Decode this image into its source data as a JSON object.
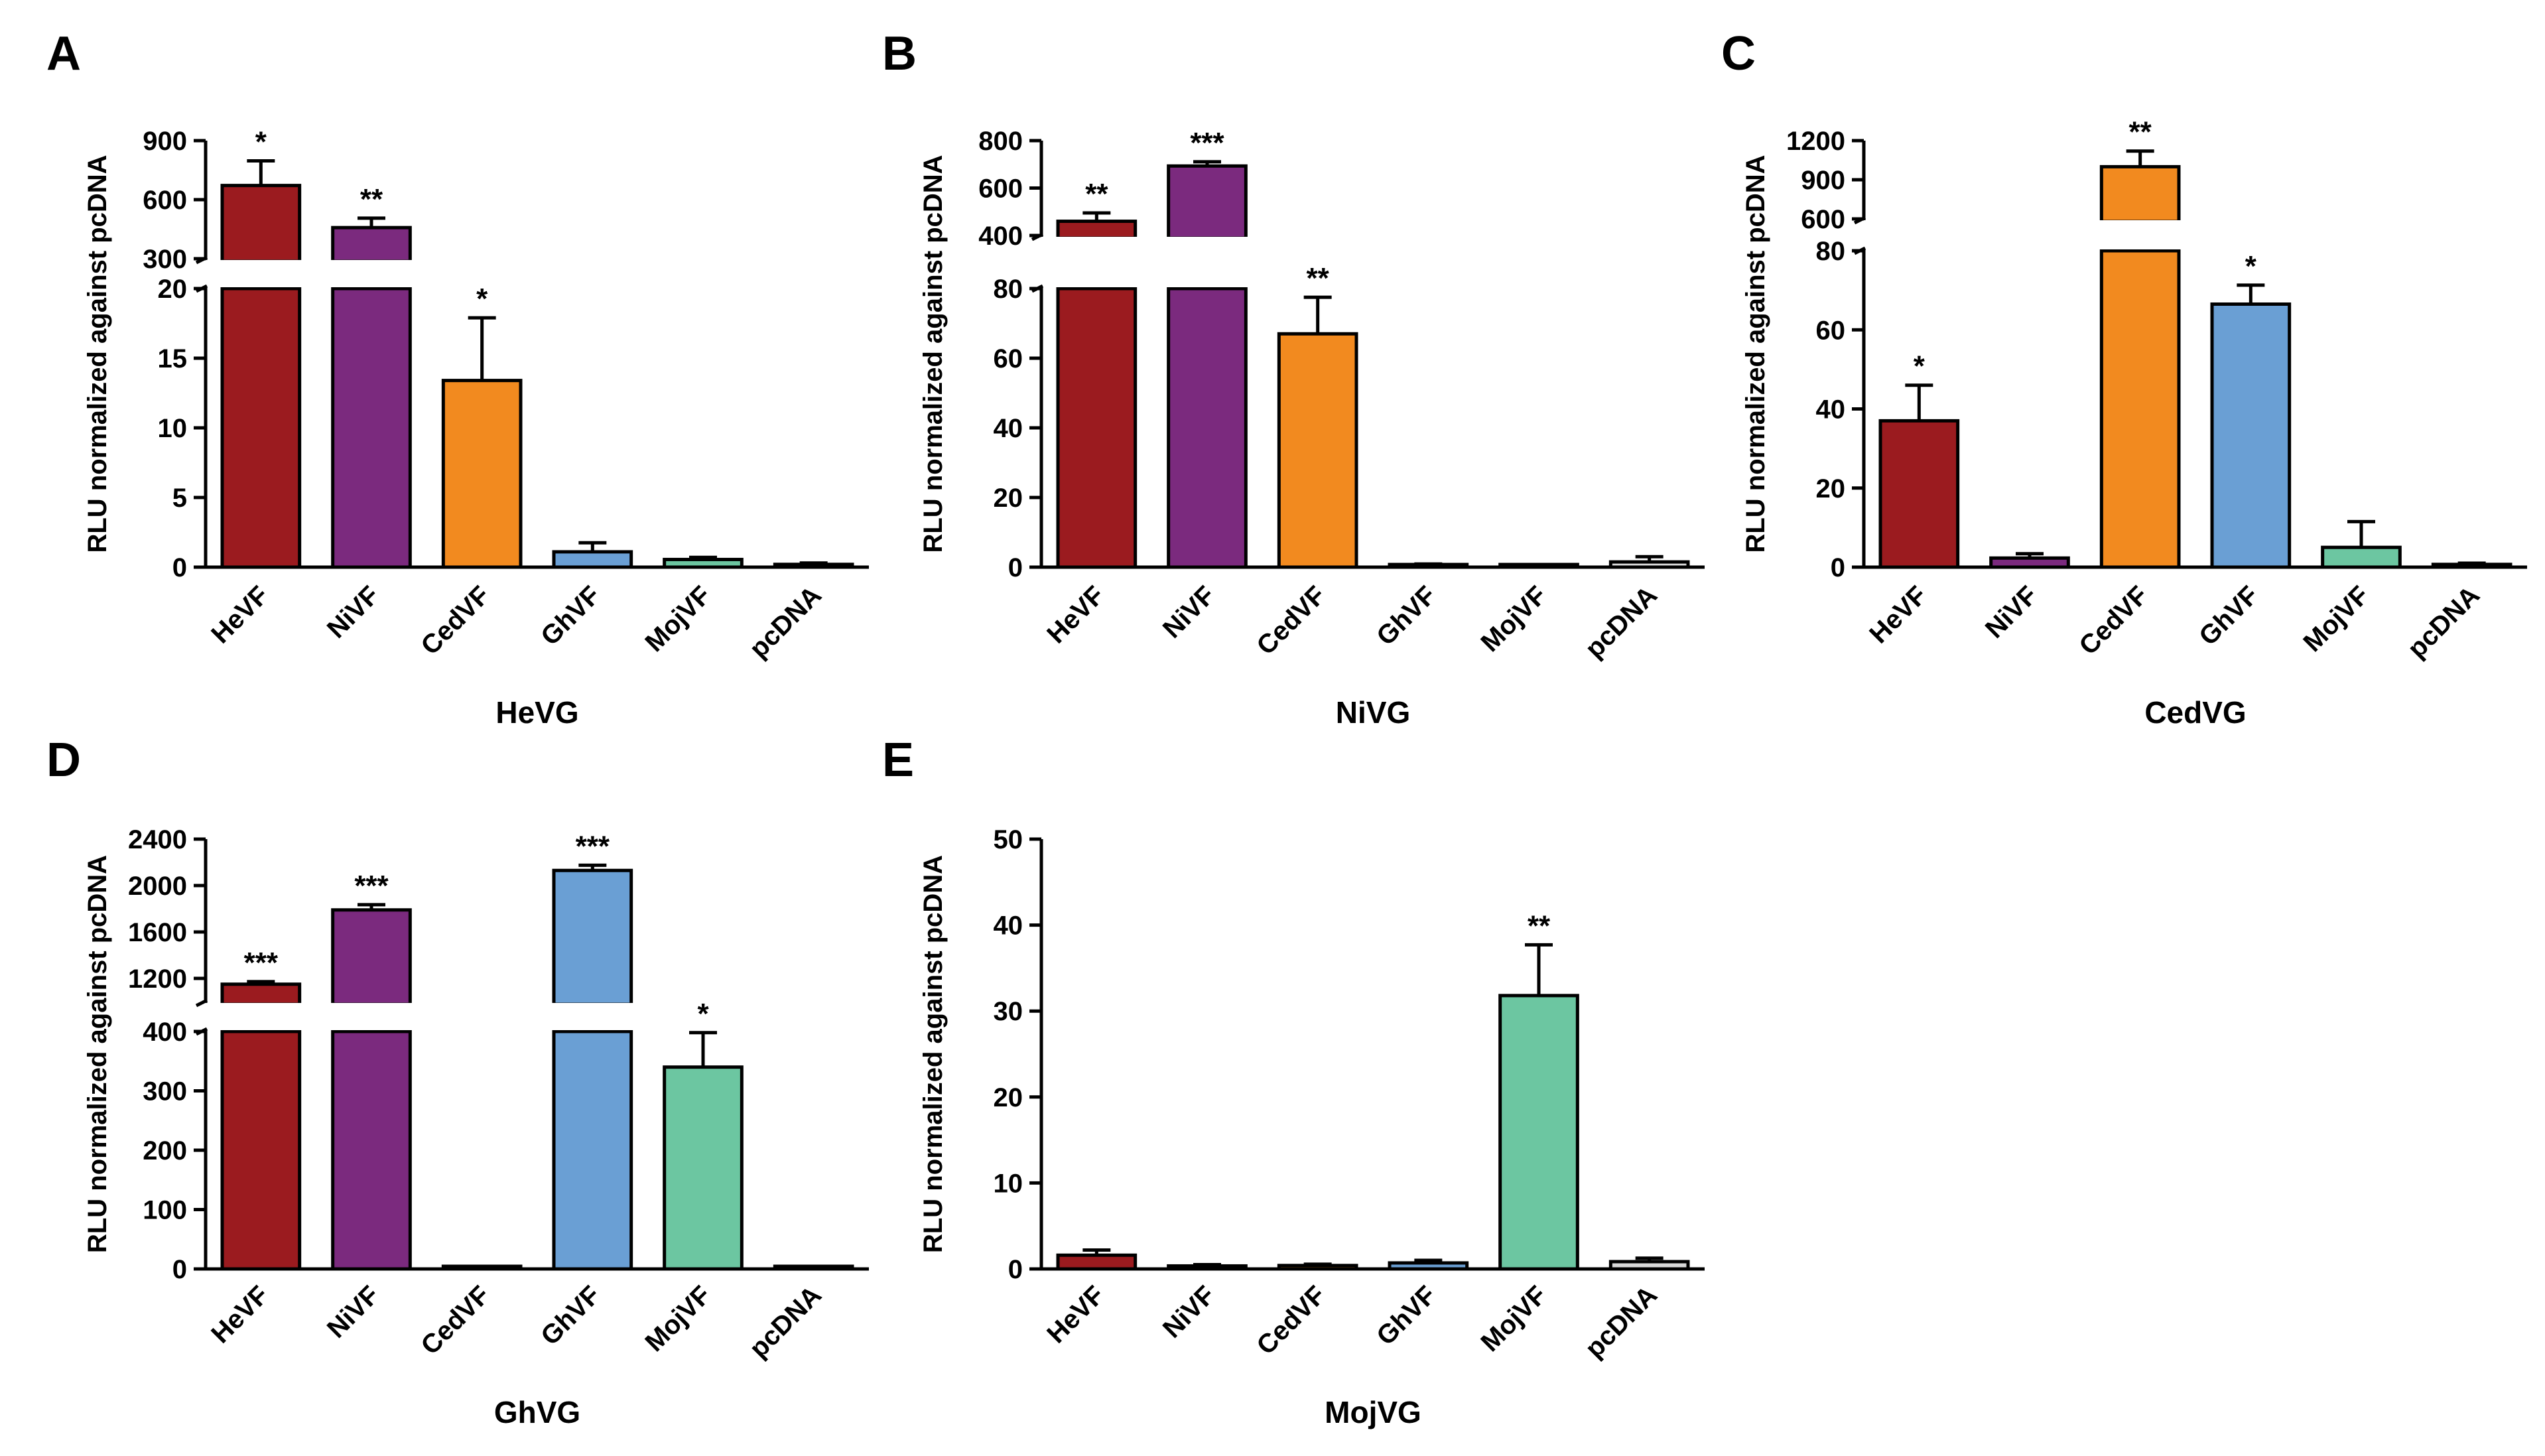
{
  "chart_data": [
    {
      "panel": "A",
      "type": "bar",
      "xlabel": "HeVG",
      "ylabel": "RLU normalized against pcDNA",
      "categories": [
        "HeVF",
        "NiVF",
        "CedVF",
        "GhVF",
        "MojVF",
        "pcDNA"
      ],
      "values": [
        672,
        458,
        13.4,
        1.1,
        0.55,
        0.2
      ],
      "errors": [
        125,
        48,
        4.5,
        0.65,
        0.15,
        0.1
      ],
      "significance": [
        "*",
        "**",
        "*",
        "",
        "",
        ""
      ],
      "colors": [
        "#9b1b1f",
        "#7b2a7e",
        "#f28a1f",
        "#6a9fd4",
        "#6cc6a1",
        "#d9d9d9"
      ],
      "ylim_lower": [
        0,
        20
      ],
      "ylim_upper": [
        300,
        900
      ],
      "yticks_lower": [
        0,
        5,
        10,
        15,
        20
      ],
      "yticks_upper": [
        300,
        600,
        900
      ]
    },
    {
      "panel": "B",
      "type": "bar",
      "xlabel": "NiVG",
      "ylabel": "RLU normalized against pcDNA",
      "categories": [
        "HeVF",
        "NiVF",
        "CedVF",
        "GhVF",
        "MojVF",
        "pcDNA"
      ],
      "values": [
        460,
        693,
        67,
        0.6,
        0.3,
        1.5
      ],
      "errors": [
        35,
        18,
        10.5,
        0.3,
        0.1,
        1.5
      ],
      "significance": [
        "**",
        "***",
        "**",
        "",
        "",
        ""
      ],
      "colors": [
        "#9b1b1f",
        "#7b2a7e",
        "#f28a1f",
        "#6a9fd4",
        "#6cc6a1",
        "#d9d9d9"
      ],
      "ylim_lower": [
        0,
        80
      ],
      "ylim_upper": [
        400,
        800
      ],
      "yticks_lower": [
        0,
        20,
        40,
        60,
        80
      ],
      "yticks_upper": [
        400,
        600,
        800
      ]
    },
    {
      "panel": "C",
      "type": "bar",
      "xlabel": "CedVG",
      "ylabel": "RLU normalized against pcDNA",
      "categories": [
        "HeVF",
        "NiVF",
        "CedVF",
        "GhVF",
        "MojVF",
        "pcDNA"
      ],
      "values": [
        37,
        2.3,
        1000,
        66.5,
        5,
        0.7
      ],
      "errors": [
        9,
        1.1,
        120,
        4.8,
        6.5,
        0.3
      ],
      "significance": [
        "*",
        "",
        "**",
        "*",
        "",
        ""
      ],
      "colors": [
        "#9b1b1f",
        "#7b2a7e",
        "#f28a1f",
        "#6a9fd4",
        "#6cc6a1",
        "#d9d9d9"
      ],
      "ylim_lower": [
        0,
        80
      ],
      "ylim_upper": [
        600,
        1200
      ],
      "yticks_lower": [
        0,
        20,
        40,
        60,
        80
      ],
      "yticks_upper": [
        600,
        900,
        1200
      ]
    },
    {
      "panel": "D",
      "type": "bar",
      "xlabel": "GhVG",
      "ylabel": "RLU normalized against pcDNA",
      "categories": [
        "HeVF",
        "NiVF",
        "CedVF",
        "GhVF",
        "MojVF",
        "pcDNA"
      ],
      "values": [
        1150,
        1790,
        1,
        2130,
        340,
        0.5
      ],
      "errors": [
        22,
        45,
        0.5,
        45,
        58,
        0.3
      ],
      "significance": [
        "***",
        "***",
        "",
        "***",
        "*",
        ""
      ],
      "colors": [
        "#9b1b1f",
        "#7b2a7e",
        "#f28a1f",
        "#6a9fd4",
        "#6cc6a1",
        "#d9d9d9"
      ],
      "ylim_lower": [
        0,
        400
      ],
      "ylim_upper": [
        1000,
        2400
      ],
      "yticks_lower": [
        0,
        100,
        200,
        300,
        400
      ],
      "yticks_upper": [
        1200,
        1600,
        2000,
        2400
      ]
    },
    {
      "panel": "E",
      "type": "bar",
      "xlabel": "MojVG",
      "ylabel": "RLU normalized against pcDNA",
      "categories": [
        "HeVF",
        "NiVF",
        "CedVF",
        "GhVF",
        "MojVF",
        "pcDNA"
      ],
      "values": [
        1.6,
        0.35,
        0.4,
        0.7,
        31.8,
        0.85
      ],
      "errors": [
        0.6,
        0.15,
        0.15,
        0.3,
        5.9,
        0.4
      ],
      "significance": [
        "",
        "",
        "",
        "",
        "**",
        ""
      ],
      "colors": [
        "#9b1b1f",
        "#7b2a7e",
        "#f28a1f",
        "#6a9fd4",
        "#6cc6a1",
        "#d9d9d9"
      ],
      "ylim": [
        0,
        50
      ],
      "yticks": [
        0,
        10,
        20,
        30,
        40,
        50
      ]
    }
  ]
}
